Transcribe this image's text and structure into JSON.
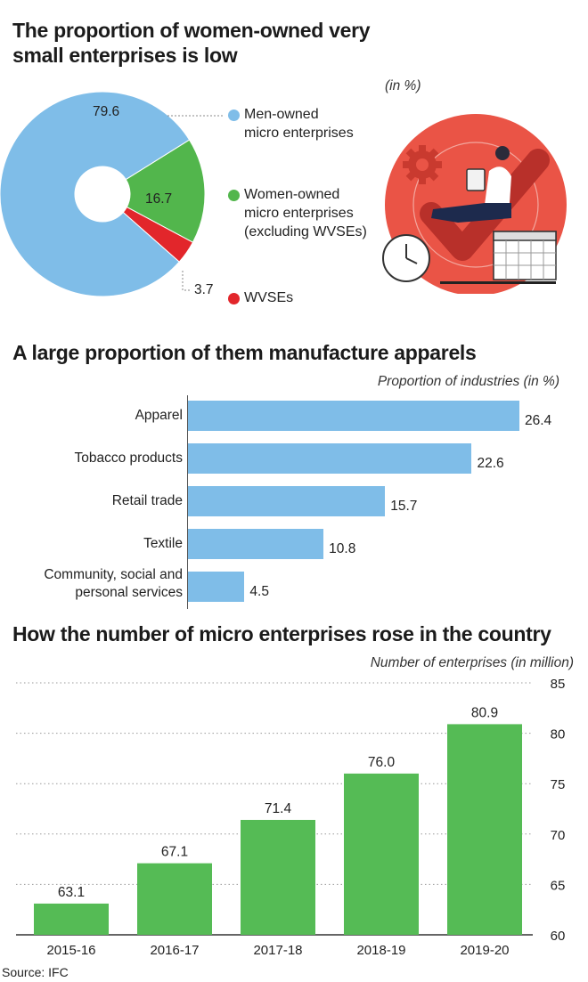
{
  "colors": {
    "men": "#7fbde8",
    "women": "#52b64c",
    "wvse": "#e2262b",
    "hbar": "#7fbde8",
    "vbar": "#55bb55",
    "illustration_circle": "#ea5446"
  },
  "chart_data": [
    {
      "type": "pie",
      "title": "The proportion of women-owned very small enterprises is low",
      "unit_label": "(in %)",
      "slices": [
        {
          "label_lines": [
            "Men-owned",
            "micro enterprises"
          ],
          "value": 79.6,
          "value_label": "79.6"
        },
        {
          "label_lines": [
            "Women-owned",
            "micro enterprises",
            "(excluding WVSEs)"
          ],
          "value": 16.7,
          "value_label": "16.7"
        },
        {
          "label_lines": [
            "WVSEs"
          ],
          "value": 3.7,
          "value_label": "3.7"
        }
      ]
    },
    {
      "type": "bar",
      "orientation": "horizontal",
      "title": "A large proportion of them manufacture apparels",
      "xlabel": "Proportion of industries (in %)",
      "categories": [
        "Apparel",
        "Tobacco products",
        "Retail trade",
        "Textile",
        "Community, social and personal services"
      ],
      "category_lines": [
        [
          "Apparel"
        ],
        [
          "Tobacco products"
        ],
        [
          "Retail trade"
        ],
        [
          "Textile"
        ],
        [
          "Community, social and",
          "personal services"
        ]
      ],
      "values": [
        26.4,
        22.6,
        15.7,
        10.8,
        4.5
      ],
      "value_labels": [
        "26.4",
        "22.6",
        "15.7",
        "10.8",
        "4.5"
      ],
      "xlim": [
        0,
        26.4
      ]
    },
    {
      "type": "bar",
      "orientation": "vertical",
      "title": "How the number of micro enterprises rose in the country",
      "ylabel": "Number of enterprises (in million)",
      "categories": [
        "2015-16",
        "2016-17",
        "2017-18",
        "2018-19",
        "2019-20"
      ],
      "values": [
        63.1,
        67.1,
        71.4,
        76.0,
        80.9
      ],
      "value_labels": [
        "63.1",
        "67.1",
        "71.4",
        "76.0",
        "80.9"
      ],
      "ylim": [
        60,
        85
      ],
      "yticks": [
        "60",
        "65",
        "70",
        "75",
        "80",
        "85"
      ],
      "ytick_values": [
        60,
        65,
        70,
        75,
        80,
        85
      ],
      "grid": "dotted horizontal",
      "axis_side": "right"
    }
  ],
  "source": "Source: IFC"
}
